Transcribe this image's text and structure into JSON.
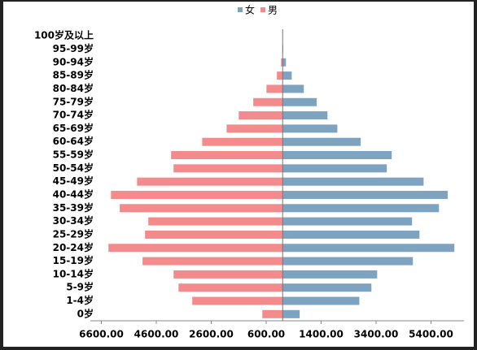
{
  "chart_data": {
    "type": "bar",
    "orientation": "horizontal",
    "categories": [
      "100岁及以上",
      "95-99岁",
      "90-94岁",
      "85-89岁",
      "80-84岁",
      "75-79岁",
      "70-74岁",
      "65-69岁",
      "60-64岁",
      "55-59岁",
      "50-54岁",
      "45-49岁",
      "40-44岁",
      "35-39岁",
      "30-34岁",
      "25-29岁",
      "20-24岁",
      "15-19岁",
      "10-14岁",
      "5-9岁",
      "1-4岁",
      "0岁"
    ],
    "series": [
      {
        "name": "女",
        "color": "#7ea3c1",
        "values": [
          5,
          20,
          120,
          330,
          770,
          1240,
          1630,
          1990,
          2840,
          3970,
          3790,
          5130,
          6010,
          5690,
          4710,
          4980,
          6250,
          4740,
          3440,
          3230,
          2790,
          620
        ]
      },
      {
        "name": "男",
        "color": "#f38b8d",
        "values": [
          -3,
          -10,
          -60,
          -210,
          -590,
          -1070,
          -1600,
          -2040,
          -2930,
          -4060,
          -3970,
          -5300,
          -6250,
          -5930,
          -4890,
          -5010,
          -6340,
          -5100,
          -3970,
          -3790,
          -3290,
          -740
        ]
      }
    ],
    "xlim": [
      -7000,
      6600
    ],
    "xticks": [
      {
        "value": -6600,
        "label": "6600.00"
      },
      {
        "value": -4600,
        "label": "4600.00"
      },
      {
        "value": -2600,
        "label": "2600.00"
      },
      {
        "value": -600,
        "label": "600.00"
      },
      {
        "value": 1400,
        "label": "1400.00"
      },
      {
        "value": 3400,
        "label": "3400.00"
      },
      {
        "value": 5400,
        "label": "5400.00"
      }
    ],
    "legend": "top"
  }
}
